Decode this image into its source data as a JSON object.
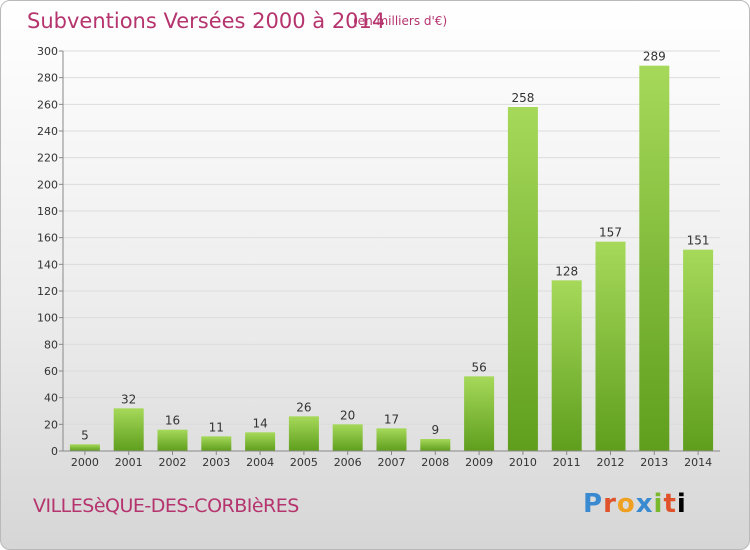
{
  "title": "Subventions Versées 2000 à 2014",
  "subtitle": "(en milliers d'€)",
  "commune": "VILLESèQUE-DES-CORBIèRES",
  "logo": {
    "letters": [
      "P",
      "r",
      "o",
      "x",
      "i",
      "t",
      "i"
    ],
    "text": "Proxiti"
  },
  "colors": {
    "bar_top": "#a6d95a",
    "bar_bottom": "#5f9e1d",
    "title": "#b5346e",
    "grid": "#dcdcdc"
  },
  "chart_data": {
    "type": "bar",
    "title": "Subventions Versées 2000 à 2014",
    "categories": [
      "2000",
      "2001",
      "2002",
      "2003",
      "2004",
      "2005",
      "2006",
      "2007",
      "2008",
      "2009",
      "2010",
      "2011",
      "2012",
      "2013",
      "2014"
    ],
    "values": [
      5,
      32,
      16,
      11,
      14,
      26,
      20,
      17,
      9,
      56,
      258,
      128,
      157,
      289,
      151
    ],
    "ylim": [
      0,
      300
    ],
    "yticks": [
      0,
      20,
      40,
      60,
      80,
      100,
      120,
      140,
      160,
      180,
      200,
      220,
      240,
      260,
      280,
      300
    ],
    "grid": true
  }
}
